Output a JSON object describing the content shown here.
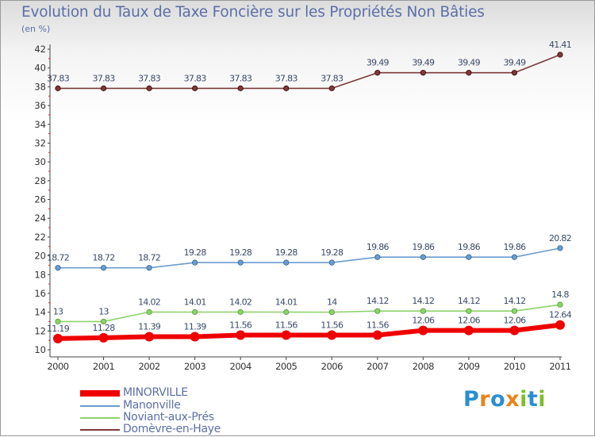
{
  "header": {
    "title": "Evolution du Taux de Taxe Foncière sur les Propriétés Non Bâties",
    "subtitle": "(en %)"
  },
  "brand": {
    "letters": [
      "P",
      "r",
      "o",
      "x",
      "i",
      "t",
      "i"
    ],
    "colors": [
      "#2a8fd0",
      "#e8841a",
      "#2a8fd0",
      "#e8841a",
      "#7cbf2a",
      "#2a8fd0",
      "#7cbf2a"
    ]
  },
  "chart_data": {
    "type": "line",
    "title": "Evolution du Taux de Taxe Foncière sur les Propriétés Non Bâties",
    "ylabel": "(en %)",
    "xlabel": "",
    "categories": [
      "2000",
      "2001",
      "2002",
      "2003",
      "2004",
      "2005",
      "2006",
      "2007",
      "2008",
      "2009",
      "2010",
      "2011"
    ],
    "ylim": [
      10,
      42
    ],
    "yticks": [
      10,
      12,
      14,
      16,
      18,
      20,
      22,
      24,
      26,
      28,
      30,
      32,
      34,
      36,
      38,
      40,
      42
    ],
    "grid": false,
    "legend": "bottom-left",
    "series": [
      {
        "name": "MINORVILLE",
        "color": "#ee0000",
        "bold": true,
        "values": [
          11.19,
          11.28,
          11.39,
          11.39,
          11.56,
          11.56,
          11.56,
          11.56,
          12.06,
          12.06,
          12.06,
          12.64
        ],
        "labels": [
          "11.19",
          "11.28",
          "11.39",
          "11.39",
          "11.56",
          "11.56",
          "11.56",
          "11.56",
          "12.06",
          "12.06",
          "12.06",
          "12.64"
        ]
      },
      {
        "name": "Manonville",
        "color": "#6b9ccd",
        "bold": false,
        "values": [
          18.72,
          18.72,
          18.72,
          19.28,
          19.28,
          19.28,
          19.28,
          19.86,
          19.86,
          19.86,
          19.86,
          20.82
        ],
        "labels": [
          "18.72",
          "18.72",
          "18.72",
          "19.28",
          "19.28",
          "19.28",
          "19.28",
          "19.86",
          "19.86",
          "19.86",
          "19.86",
          "20.82"
        ]
      },
      {
        "name": "Noviant-aux-Prés",
        "color": "#8dd36a",
        "bold": false,
        "values": [
          13,
          13,
          14.02,
          14.01,
          14.02,
          14.01,
          14,
          14.12,
          14.12,
          14.12,
          14.12,
          14.8
        ],
        "labels": [
          "13",
          "13",
          "14.02",
          "14.01",
          "14.02",
          "14.01",
          "14",
          "14.12",
          "14.12",
          "14.12",
          "14.12",
          "14.8"
        ]
      },
      {
        "name": "Domèvre-en-Haye",
        "color": "#7b3a3a",
        "bold": false,
        "values": [
          37.83,
          37.83,
          37.83,
          37.83,
          37.83,
          37.83,
          37.83,
          39.49,
          39.49,
          39.49,
          39.49,
          41.41
        ],
        "labels": [
          "37.83",
          "37.83",
          "37.83",
          "37.83",
          "37.83",
          "37.83",
          "37.83",
          "39.49",
          "39.49",
          "39.49",
          "39.49",
          "41.41"
        ]
      }
    ]
  }
}
